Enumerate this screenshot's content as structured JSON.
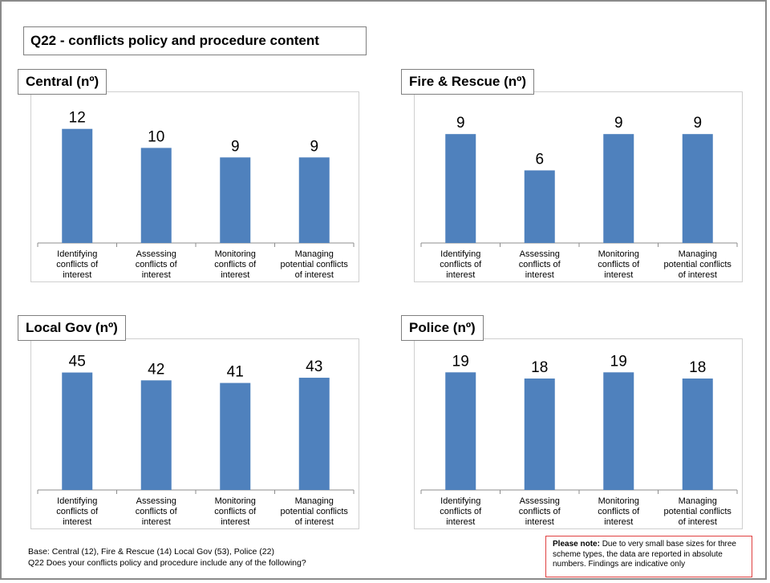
{
  "page_title": "Q22 - conflicts policy and procedure content",
  "bar_color": "#4f81bd",
  "chart_data": [
    {
      "type": "bar",
      "title": "Central  (nº)",
      "categories": [
        "Identifying conflicts of interest",
        "Assessing conflicts of interest",
        "Monitoring conflicts of interest",
        "Managing potential conflicts of interest"
      ],
      "category_lines": [
        [
          "Identifying",
          "conflicts of",
          "interest"
        ],
        [
          "Assessing",
          "conflicts of",
          "interest"
        ],
        [
          "Monitoring",
          "conflicts of",
          "interest"
        ],
        [
          "Managing",
          "potential conflicts",
          "of interest"
        ]
      ],
      "values": [
        12,
        10,
        9,
        9
      ],
      "data_labels": [
        "12",
        "10",
        "9",
        "9"
      ],
      "ylim": [
        0,
        14
      ],
      "grid": false
    },
    {
      "type": "bar",
      "title": "Fire & Rescue (nº)",
      "categories": [
        "Identifying conflicts of interest",
        "Assessing conflicts of interest",
        "Monitoring conflicts of interest",
        "Managing potential conflicts of interest"
      ],
      "category_lines": [
        [
          "Identifying",
          "conflicts of",
          "interest"
        ],
        [
          "Assessing",
          "conflicts of",
          "interest"
        ],
        [
          "Monitoring",
          "conflicts of",
          "interest"
        ],
        [
          "Managing",
          "potential conflicts",
          "of interest"
        ]
      ],
      "values": [
        9,
        6,
        9,
        9
      ],
      "data_labels": [
        "9",
        "6",
        "9",
        "9"
      ],
      "ylim": [
        0,
        11
      ],
      "grid": false
    },
    {
      "type": "bar",
      "title": "Local Gov (nº)",
      "categories": [
        "Identifying conflicts of interest",
        "Assessing conflicts of interest",
        "Monitoring conflicts of interest",
        "Managing potential conflicts of interest"
      ],
      "category_lines": [
        [
          "Identifying",
          "conflicts of",
          "interest"
        ],
        [
          "Assessing",
          "conflicts of",
          "interest"
        ],
        [
          "Monitoring",
          "conflicts of",
          "interest"
        ],
        [
          "Managing",
          "potential conflicts",
          "of interest"
        ]
      ],
      "values": [
        45,
        42,
        41,
        43
      ],
      "data_labels": [
        "45",
        "42",
        "41",
        "43"
      ],
      "ylim": [
        0,
        51
      ],
      "grid": false
    },
    {
      "type": "bar",
      "title": "Police (nº)",
      "categories": [
        "Identifying conflicts of interest",
        "Assessing conflicts of interest",
        "Monitoring conflicts of interest",
        "Managing potential conflicts of interest"
      ],
      "category_lines": [
        [
          "Identifying",
          "conflicts of",
          "interest"
        ],
        [
          "Assessing",
          "conflicts of",
          "interest"
        ],
        [
          "Monitoring",
          "conflicts of",
          "interest"
        ],
        [
          "Managing",
          "potential conflicts",
          "of interest"
        ]
      ],
      "values": [
        19,
        18,
        19,
        18
      ],
      "data_labels": [
        "19",
        "18",
        "19",
        "18"
      ],
      "ylim": [
        0,
        21.5
      ],
      "grid": false
    }
  ],
  "footnote": {
    "base": "Base: Central (12), Fire & Rescue (14) Local Gov (53), Police (22)",
    "question": "Q22 Does your conflicts policy and procedure include any of the following?"
  },
  "note": {
    "heading": "Please note:",
    "text": " Due to very small base sizes  for three scheme types, the data are reported in absolute numbers.  Findings are indicative only"
  }
}
